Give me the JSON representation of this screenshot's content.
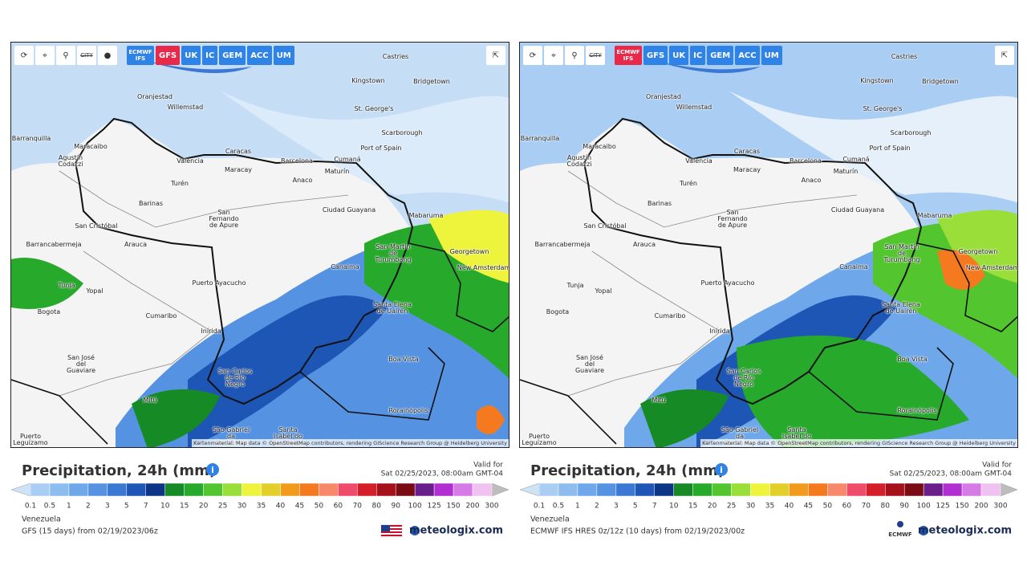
{
  "panels": [
    {
      "toolbar": {
        "city": "CITY",
        "models": [
          "ECMWF IFS",
          "GFS",
          "UK",
          "IC",
          "GEM",
          "ACC",
          "UM"
        ],
        "active": 1
      },
      "attribution": "Kartenmaterial: Map data © OpenStreetMap contributors, rendering GIScience Research Group @ Heidelberg University",
      "title": "Precipitation, 24h (mm)",
      "valid_label": "Valid for",
      "valid_time": "Sat 02/25/2023, 08:00am GMT-04",
      "region": "Venezuela",
      "model_run": "GFS (15 days) from 02/19/2023/06z",
      "brand": "meteologix.com"
    },
    {
      "toolbar": {
        "city": "CITY",
        "models": [
          "ECMWF IFS",
          "GFS",
          "UK",
          "IC",
          "GEM",
          "ACC",
          "UM"
        ],
        "active": 0
      },
      "attribution": "Kartenmaterial: Map data © OpenStreetMap contributors, rendering GIScience Research Group @ Heidelberg University",
      "title": "Precipitation, 24h (mm)",
      "valid_label": "Valid for",
      "valid_time": "Sat 02/25/2023, 08:00am GMT-04",
      "region": "Venezuela",
      "model_run": "ECMWF IFS HRES 0z/12z (10 days) from 02/19/2023/00z",
      "brand": "meteologix.com",
      "badge": "ECMWF"
    }
  ],
  "map_labels": [
    "Castries",
    "Kingstown",
    "Bridgetown",
    "Oranjestad",
    "Willemstad",
    "St. George's",
    "Scarborough",
    "Port of Spain",
    "Barranquilla",
    "Maracaibo",
    "Agustín Codazzi",
    "Valencia",
    "Caracas",
    "Barcelona",
    "Cumaná",
    "Maracay",
    "Maturín",
    "Turén",
    "Anaco",
    "Barinas",
    "Ciudad Guayana",
    "San Fernando de Apure",
    "San Cristóbal",
    "Mabaruma",
    "Barrancabermeja",
    "Arauca",
    "San Martín de Turumbang",
    "Georgetown",
    "New Amsterdam",
    "Canaima",
    "Tunja",
    "Yopal",
    "Puerto Ayacucho",
    "Santa Elena de Uairén",
    "Bogota",
    "Cumaribo",
    "Inírida",
    "Boa Vista",
    "San José del Guaviare",
    "San Carlos de Río Negro",
    "Mitú",
    "Rorainópolis",
    "Puerto Leguízamo",
    "São Gabriel da Cachoeira",
    "Santa Isabel do Rio Negro"
  ],
  "scale": {
    "labels": [
      0.1,
      0.5,
      1,
      2,
      3,
      5,
      7,
      10,
      15,
      20,
      25,
      30,
      35,
      40,
      45,
      50,
      60,
      70,
      80,
      90,
      100,
      125,
      150,
      200,
      300
    ],
    "colors": [
      "#a9cdf3",
      "#8dbcef",
      "#6fa8ea",
      "#5593e2",
      "#3b78d4",
      "#1d56b4",
      "#0d3585",
      "#168a25",
      "#27a92c",
      "#52c52f",
      "#9ade3a",
      "#eef33b",
      "#e2cf2a",
      "#f19a1c",
      "#f57a1f",
      "#f7886a",
      "#ef4b6a",
      "#d41e2a",
      "#a5101a",
      "#7b0b12",
      "#6a1e8c",
      "#b12fd0",
      "#d67ae6",
      "#f0c2f2"
    ]
  }
}
